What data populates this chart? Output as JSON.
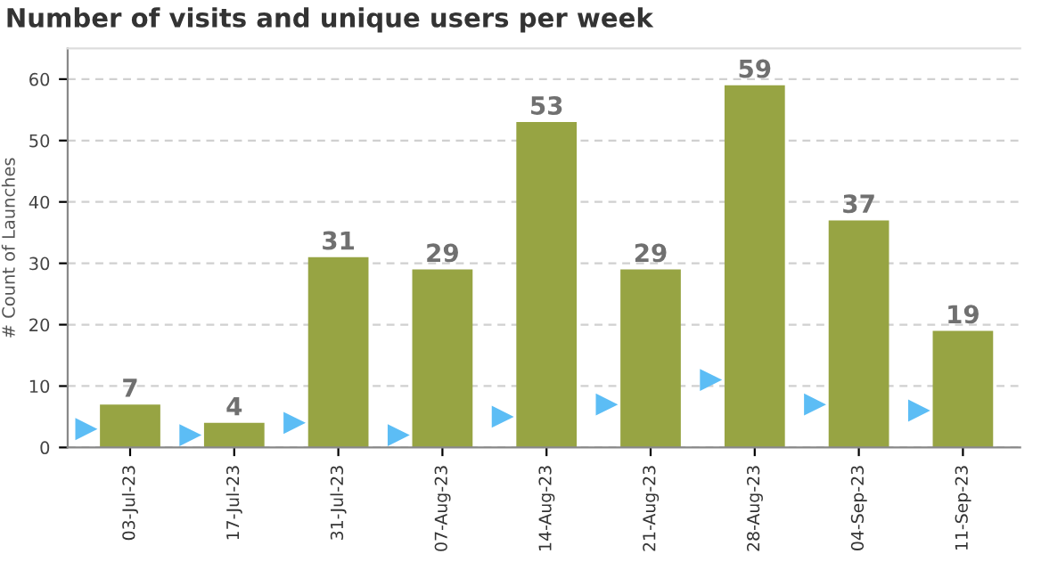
{
  "chart_data": {
    "type": "bar",
    "title": "Number of visits and unique users per week",
    "ylabel": "# Count of Launches",
    "categories": [
      "03-Jul-23",
      "17-Jul-23",
      "31-Jul-23",
      "07-Aug-23",
      "14-Aug-23",
      "21-Aug-23",
      "28-Aug-23",
      "04-Sep-23",
      "11-Sep-23"
    ],
    "series": [
      {
        "color": "#97a443",
        "values": [
          7,
          4,
          31,
          29,
          53,
          29,
          59,
          37,
          19
        ],
        "data_labels": true
      },
      {
        "type": "scatter",
        "color": "#5cbdf5",
        "marker": "triangle",
        "values": [
          3,
          2,
          4,
          2,
          5,
          7,
          11,
          7,
          6
        ]
      }
    ],
    "ylim": [
      0,
      65
    ],
    "yticks": [
      0,
      10,
      20,
      30,
      40,
      50,
      60
    ],
    "grid": "y",
    "legend": false
  }
}
